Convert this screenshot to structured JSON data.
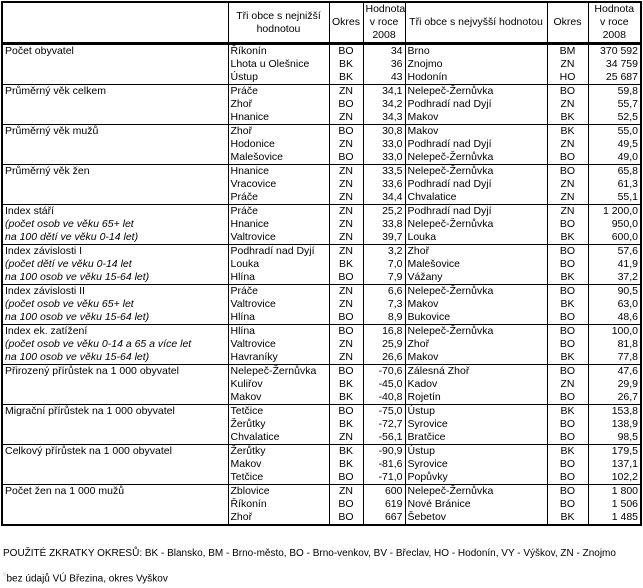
{
  "header": {
    "indicator": "",
    "low_name": "Tři obce s nejnižší hodnotou",
    "low_district": "Okres",
    "low_value": "Hodnota v roce 2008",
    "high_name": "Tři obce s nejvyšší hodnotou",
    "high_district": "Okres",
    "high_value": "Hodnota v roce 2008"
  },
  "groups": [
    {
      "label": [
        "Počet obyvatel",
        "",
        ""
      ],
      "rows": [
        [
          "Říkonín",
          "BO",
          "34",
          "Brno",
          "BM",
          "370 592"
        ],
        [
          "Lhota u Olešnice",
          "BK",
          "36",
          "Znojmo",
          "ZN",
          "34 759"
        ],
        [
          "Ústup",
          "BK",
          "43",
          "Hodonín",
          "HO",
          "25 687"
        ]
      ]
    },
    {
      "label": [
        "Průměrný věk celkem",
        "",
        ""
      ],
      "rows": [
        [
          "Práče",
          "ZN",
          "34,1",
          "Nelepeč-Žernůvka",
          "BO",
          "59,8"
        ],
        [
          "Zhoř",
          "BO",
          "34,2",
          "Podhradí nad Dyjí",
          "ZN",
          "55,7"
        ],
        [
          "Hnanice",
          "ZN",
          "34,3",
          "Makov",
          "BK",
          "52,5"
        ]
      ]
    },
    {
      "label": [
        "Průměrný věk mužů",
        "",
        ""
      ],
      "rows": [
        [
          "Zhoř",
          "BO",
          "30,8",
          "Makov",
          "BK",
          "55,0"
        ],
        [
          "Hodonice",
          "ZN",
          "33,0",
          "Podhradí nad Dyjí",
          "ZN",
          "49,5"
        ],
        [
          "Malešovice",
          "BO",
          "33,0",
          "Nelepeč-Žernůvka",
          "BO",
          "49,0"
        ]
      ]
    },
    {
      "label": [
        "Průměrný věk žen",
        "",
        ""
      ],
      "rows": [
        [
          "Hnanice",
          "ZN",
          "33,5",
          "Nelepeč-Žernůvka",
          "BO",
          "65,8"
        ],
        [
          "Vracovice",
          "ZN",
          "33,6",
          "Podhradí nad Dyjí",
          "ZN",
          "61,3"
        ],
        [
          "Práče",
          "ZN",
          "34,4",
          "Chvalatice",
          "ZN",
          "55,1"
        ]
      ]
    },
    {
      "label": [
        "Index stáří",
        "(počet osob ve věku 65+ let",
        "na 100 dětí ve věku 0-14 let)"
      ],
      "rows": [
        [
          "Práče",
          "ZN",
          "25,2",
          "Podhradí nad Dyjí",
          "ZN",
          "1 200,0"
        ],
        [
          "Hnanice",
          "ZN",
          "33,8",
          "Nelepeč-Žernůvka",
          "BO",
          "950,0"
        ],
        [
          "Valtrovice",
          "ZN",
          "39,7",
          "Louka",
          "BK",
          "600,0"
        ]
      ]
    },
    {
      "label": [
        "Index závislosti I",
        "(počet dětí ve věku 0-14 let",
        "na 100 osob ve věku 15-64 let)"
      ],
      "rows": [
        [
          "Podhradí nad Dyjí",
          "ZN",
          "3,2",
          "Zhoř",
          "BO",
          "57,6"
        ],
        [
          "Louka",
          "BK",
          "7,0",
          "Malešovice",
          "BO",
          "41,9"
        ],
        [
          "Hlína",
          "BO",
          "7,9",
          "Vážany",
          "BK",
          "37,2"
        ]
      ]
    },
    {
      "label": [
        "Index závislosti II",
        "(počet osob ve věku 65+ let",
        "na 100 osob ve věku 15-64 let)"
      ],
      "rows": [
        [
          "Práče",
          "ZN",
          "6,6",
          "Nelepeč-Žernůvka",
          "BO",
          "90,5"
        ],
        [
          "Valtrovice",
          "ZN",
          "7,3",
          "Makov",
          "BK",
          "63,0"
        ],
        [
          "Hlína",
          "BO",
          "8,9",
          "Bukovice",
          "BO",
          "48,6"
        ]
      ]
    },
    {
      "label": [
        "Index ek. zatížení",
        "(počet osob ve věku 0-14 a 65 a více let",
        "na 100 osob ve věku 15-64 let)"
      ],
      "rows": [
        [
          "Hlína",
          "BO",
          "16,8",
          "Nelepeč-Žernůvka",
          "BO",
          "100,0"
        ],
        [
          "Valtrovice",
          "ZN",
          "25,9",
          "Zhoř",
          "BO",
          "81,8"
        ],
        [
          "Havraníky",
          "ZN",
          "26,6",
          "Makov",
          "BK",
          "77,8"
        ]
      ]
    },
    {
      "label": [
        "Přirozený přírůstek na 1 000 obyvatel",
        "",
        ""
      ],
      "rows": [
        [
          "Nelepeč-Žernůvka",
          "BO",
          "-70,6",
          "Zálesná Zhoř",
          "BO",
          "47,6"
        ],
        [
          "Kuliřov",
          "BK",
          "-45,0",
          "Kadov",
          "ZN",
          "29,9"
        ],
        [
          "Makov",
          "BK",
          "-40,8",
          "Rojetín",
          "BO",
          "26,7"
        ]
      ]
    },
    {
      "label": [
        "Migrační přírůstek na 1 000 obyvatel",
        "",
        ""
      ],
      "rows": [
        [
          "Tetčice",
          "BO",
          "-75,0",
          "Ústup",
          "BK",
          "153,8"
        ],
        [
          "Žerůtky",
          "BK",
          "-72,7",
          "Syrovice",
          "BO",
          "138,9"
        ],
        [
          "Chvalatice",
          "ZN",
          "-56,1",
          "Bratčice",
          "BO",
          "98,5"
        ]
      ]
    },
    {
      "label": [
        "Celkový přírůstek na 1 000 obyvatel",
        "",
        ""
      ],
      "rows": [
        [
          "Žerůtky",
          "BK",
          "-90,9",
          "Ústup",
          "BK",
          "179,5"
        ],
        [
          "Makov",
          "BK",
          "-81,6",
          "Syrovice",
          "BO",
          "137,1"
        ],
        [
          "Tetčice",
          "BO",
          "-71,0",
          "Popůvky",
          "BO",
          "102,2"
        ]
      ]
    },
    {
      "label": [
        "Počet žen na 1 000 mužů",
        "",
        ""
      ],
      "rows": [
        [
          "Zblovice",
          "ZN",
          "600",
          "Nelepeč-Žernůvka",
          "BO",
          "1 800"
        ],
        [
          "Říkonín",
          "BO",
          "619",
          "Nové Bránice",
          "BO",
          "1 506"
        ],
        [
          "Zhoř",
          "BO",
          "667",
          "Šebetov",
          "BK",
          "1 485"
        ]
      ]
    }
  ],
  "footer": {
    "abbreviations": "POUŽITÉ ZKRATKY OKRESŮ: BK - Blansko, BM - Brno-město, BO - Brno-venkov, BV - Břeclav, HO - Hodonín, VY - Výškov, ZN - Znojmo",
    "note_marker": "¹⁾",
    "note": "bez údajů VÚ Březina, okres Vyškov"
  }
}
